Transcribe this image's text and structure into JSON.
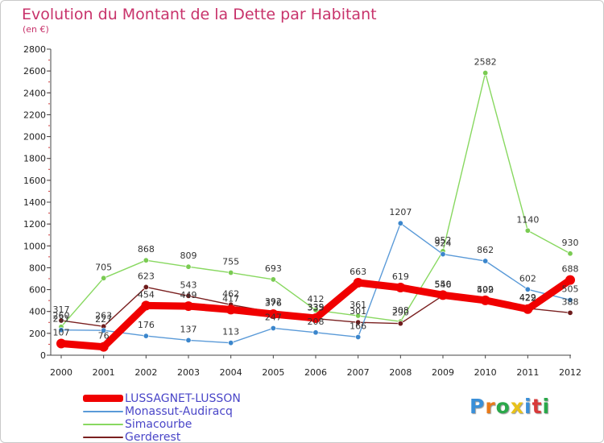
{
  "header": {
    "title": "Evolution du Montant de la Dette par Habitant",
    "subtitle": "(en €)"
  },
  "logo_text": "Proxiti",
  "logo_colors": [
    "#3a8fd8",
    "#e87a1a",
    "#2aa84a",
    "#e8c21a",
    "#3a8fd8",
    "#d83a3a",
    "#2aa84a"
  ],
  "chart_data": {
    "type": "line",
    "title": "Evolution du Montant de la Dette par Habitant",
    "subtitle": "(en €)",
    "xlabel": "",
    "ylabel": "",
    "categories": [
      "2000",
      "2001",
      "2002",
      "2003",
      "2004",
      "2005",
      "2006",
      "2007",
      "2008",
      "2009",
      "2010",
      "2011",
      "2012"
    ],
    "ylim": [
      0,
      2800
    ],
    "yticks": [
      "0",
      "200",
      "400",
      "600",
      "800",
      "1000",
      "1200",
      "1400",
      "1600",
      "1800",
      "2000",
      "2200",
      "2400",
      "2600",
      "2800"
    ],
    "grid": false,
    "legend_position": "bottom-left",
    "series": [
      {
        "name": "Simacourbe",
        "color": "#88d860",
        "point_color": "#7acb52",
        "values": [
          260,
          705,
          868,
          809,
          755,
          693,
          412,
          361,
          308,
          952,
          2582,
          1140,
          930
        ],
        "labels": [
          "260",
          "705",
          "868",
          "809",
          "755",
          "693",
          "412",
          "361",
          "308",
          "952",
          "2582",
          "1140",
          "930"
        ]
      },
      {
        "name": "Gerderest",
        "color": "#7a2020",
        "point_color": "#6e1c1c",
        "values": [
          317,
          263,
          623,
          543,
          462,
          392,
          335,
          301,
          290,
          546,
          499,
          429,
          388
        ],
        "labels": [
          "317",
          "263",
          "623",
          "543",
          "462",
          "392",
          "335",
          "301",
          "290",
          "546",
          "499",
          "429",
          "388"
        ]
      },
      {
        "name": "Monassut-Audiracq",
        "color": "#5a9ad8",
        "point_color": "#3b86cc",
        "values": [
          231,
          227,
          176,
          137,
          113,
          247,
          208,
          166,
          1207,
          924,
          862,
          602,
          505
        ],
        "labels": [
          "231",
          "227",
          "176",
          "137",
          "113",
          "247",
          "208",
          "166",
          "1207",
          "924",
          "862",
          "602",
          "505"
        ]
      },
      {
        "name": "LUSSAGNET-LUSSON",
        "color": "#f00000",
        "point_color": "#f00000",
        "values": [
          107,
          76,
          454,
          449,
          417,
          376,
          339,
          663,
          619,
          550,
          502,
          422,
          688
        ],
        "labels": [
          "107",
          "76",
          "454",
          "449",
          "417",
          "376",
          "339",
          "663",
          "619",
          "550",
          "502",
          "422",
          "688"
        ]
      }
    ]
  },
  "legend": [
    {
      "name": "LUSSAGNET-LUSSON",
      "color": "#f00000"
    },
    {
      "name": "Monassut-Audiracq",
      "color": "#5a9ad8"
    },
    {
      "name": "Simacourbe",
      "color": "#88d860"
    },
    {
      "name": "Gerderest",
      "color": "#7a2020"
    }
  ]
}
